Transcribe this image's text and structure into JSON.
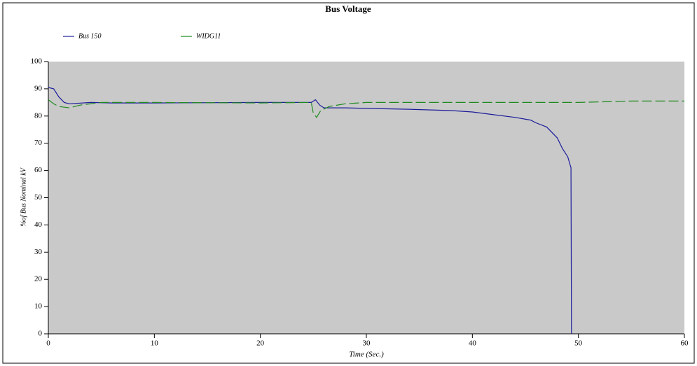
{
  "chart_data": {
    "type": "line",
    "title": "Bus Voltage",
    "x_label": "Time (Sec.)",
    "y_label": "%of Bus Nominal kV",
    "xlim": [
      0,
      60
    ],
    "xticks": [
      0,
      10,
      20,
      30,
      40,
      50,
      60
    ],
    "ylim": [
      0,
      100
    ],
    "yticks": [
      0,
      10,
      20,
      30,
      40,
      50,
      60,
      70,
      80,
      90,
      100
    ],
    "series": [
      {
        "name": "Bus 150",
        "color": "#1c1c9c",
        "dashed": false,
        "x": [
          0,
          0.5,
          1,
          1.5,
          2,
          4,
          6,
          10,
          20,
          24.8,
          25.2,
          25.6,
          26,
          28,
          30,
          34,
          38,
          40,
          42,
          44,
          45.5,
          46,
          47,
          48,
          48.5,
          49,
          49.3,
          49.35
        ],
        "values": [
          90.5,
          90,
          87,
          85,
          84.5,
          85,
          84.8,
          84.8,
          85,
          85,
          86,
          84,
          83,
          83,
          82.8,
          82.5,
          82,
          81.5,
          80.5,
          79.5,
          78.5,
          77.5,
          76,
          72,
          68,
          65,
          61,
          0
        ]
      },
      {
        "name": "WIDG11",
        "color": "#1e8a1e",
        "dashed": true,
        "x": [
          0,
          0.5,
          1,
          2,
          3,
          5,
          10,
          20,
          24.8,
          25,
          25.3,
          25.7,
          26.5,
          28,
          30,
          40,
          50,
          55,
          60
        ],
        "values": [
          86,
          84.5,
          83.5,
          83,
          84,
          85,
          85,
          84.8,
          85,
          81,
          79.5,
          82,
          83.5,
          84.5,
          85,
          85,
          85,
          85.5,
          85.5
        ]
      }
    ]
  }
}
